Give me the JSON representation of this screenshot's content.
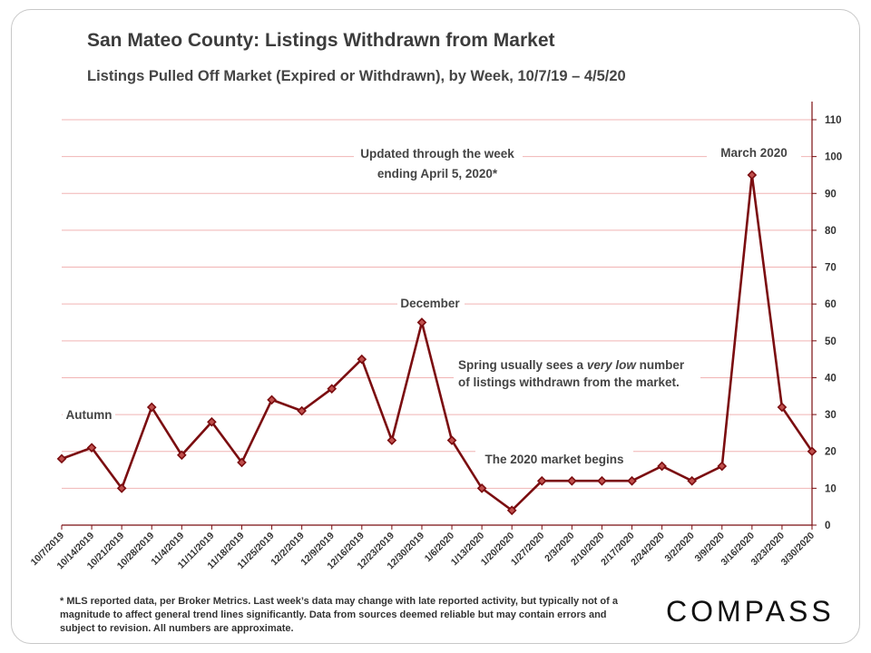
{
  "header": {
    "title": "San Mateo County: Listings Withdrawn from Market",
    "subtitle": "Listings Pulled Off Market (Expired or Withdrawn), by Week, 10/7/19 – 4/5/20"
  },
  "chart_data": {
    "type": "line",
    "title": "San Mateo County: Listings Withdrawn from Market",
    "subtitle": "Listings Pulled Off Market (Expired or Withdrawn), by Week, 10/7/19 – 4/5/20",
    "xlabel": "",
    "ylabel": "",
    "ylim": [
      0,
      110
    ],
    "yticks": [
      0,
      10,
      20,
      30,
      40,
      50,
      60,
      70,
      80,
      90,
      100,
      110
    ],
    "y_axis_side": "right",
    "grid": true,
    "categories": [
      "10/7/2019",
      "10/14/2019",
      "10/21/2019",
      "10/28/2019",
      "11/4/2019",
      "11/11/2019",
      "11/18/2019",
      "11/25/2019",
      "12/2/2019",
      "12/9/2019",
      "12/16/2019",
      "12/23/2019",
      "12/30/2019",
      "1/6/2020",
      "1/13/2020",
      "1/20/2020",
      "1/27/2020",
      "2/3/2020",
      "2/10/2020",
      "2/17/2020",
      "2/24/2020",
      "3/2/2020",
      "3/9/2020",
      "3/16/2020",
      "3/23/2020",
      "3/30/2020"
    ],
    "values": [
      18,
      21,
      10,
      32,
      19,
      28,
      17,
      34,
      31,
      37,
      45,
      23,
      55,
      23,
      10,
      4,
      12,
      12,
      12,
      12,
      16,
      12,
      16,
      95,
      32,
      20
    ],
    "line_color": "#7b0d10",
    "annotations": [
      {
        "id": "autumn",
        "text": "Autumn"
      },
      {
        "id": "december",
        "text": "December"
      },
      {
        "id": "updated_1",
        "text": "Updated through the week"
      },
      {
        "id": "updated_2",
        "text": "ending April 5, 2020*"
      },
      {
        "id": "march",
        "text": "March 2020"
      },
      {
        "id": "spring_1a",
        "text": "Spring usually sees a "
      },
      {
        "id": "spring_1b",
        "text": "very low"
      },
      {
        "id": "spring_1c",
        "text": " number"
      },
      {
        "id": "spring_2",
        "text": "of listings withdrawn from the market."
      },
      {
        "id": "market2020",
        "text": "The 2020 market begins"
      }
    ]
  },
  "footnote": "* MLS reported data, per Broker Metrics. Last week’s data may change with late reported activity, but typically not of a magnitude to affect general trend lines significantly. Data from sources deemed reliable but may contain errors and subject to revision. All numbers are approximate.",
  "logo": "COMPASS",
  "colors": {
    "line": "#7b0d10",
    "grid": "#f1b4b4",
    "axis": "#7b0d10"
  }
}
